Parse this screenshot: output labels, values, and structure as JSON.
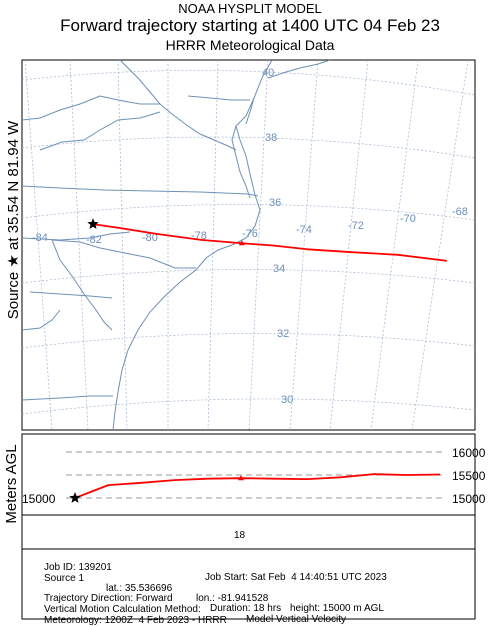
{
  "title": {
    "line1": "NOAA HYSPLIT MODEL",
    "line2": "Forward trajectory starting at 1400 UTC 04 Feb 23",
    "line3": "HRRR Meteorological Data"
  },
  "side_label": "Source ★ at  35.54 N   81.94 W",
  "height_axis_label": "Meters AGL",
  "map": {
    "lon_labels": [
      "-84",
      "-82",
      "-80",
      "-78",
      "-76",
      "-74",
      "-72",
      "-70",
      "-68"
    ],
    "lat_labels": [
      "40",
      "38",
      "36",
      "34",
      "32",
      "30"
    ],
    "trajectory_color": "#ff0000",
    "grid_color": "#6f8fb8",
    "boundary_color": "#6f8fb8",
    "source_marker": "star-icon",
    "trajectory_marker": "triangle-icon"
  },
  "trajectory": {
    "points": [
      {
        "lon": -81.94,
        "lat": 35.54
      },
      {
        "lon": -81.0,
        "lat": 35.25
      },
      {
        "lon": -79.6,
        "lat": 34.85
      },
      {
        "lon": -78.0,
        "lat": 34.5
      },
      {
        "lon": -76.5,
        "lat": 34.3
      },
      {
        "lon": -75.3,
        "lat": 34.2
      },
      {
        "lon": -74.0,
        "lat": 34.1
      },
      {
        "lon": -72.5,
        "lat": 34.1
      },
      {
        "lon": -70.7,
        "lat": 34.2
      },
      {
        "lon": -68.9,
        "lat": 34.3
      }
    ]
  },
  "height_panel": {
    "y_labels": [
      "16000",
      "15500",
      "15000"
    ],
    "x_label": "18",
    "series_color": "#ff0000",
    "heights": [
      15000,
      15280,
      15330,
      15390,
      15420,
      15430,
      15420,
      15410,
      15450,
      15520,
      15500,
      15510
    ]
  },
  "info": {
    "job_id": "Job ID: 139201",
    "job_start": "Job Start: Sat Feb  4 14:40:51 UTC 2023",
    "source_num": "Source 1",
    "lat": "lat.: 35.536696",
    "lon": "lon.: -81.941528",
    "height": "height: 15000 m AGL",
    "direction": "Trajectory Direction: Forward",
    "duration": "Duration: 18 hrs",
    "vertical_method": "Vertical Motion Calculation Method:",
    "vertical_value": "Model Vertical Velocity",
    "meteorology": "Meteorology: 1200Z  4 Feb 2023 - HRRR"
  }
}
